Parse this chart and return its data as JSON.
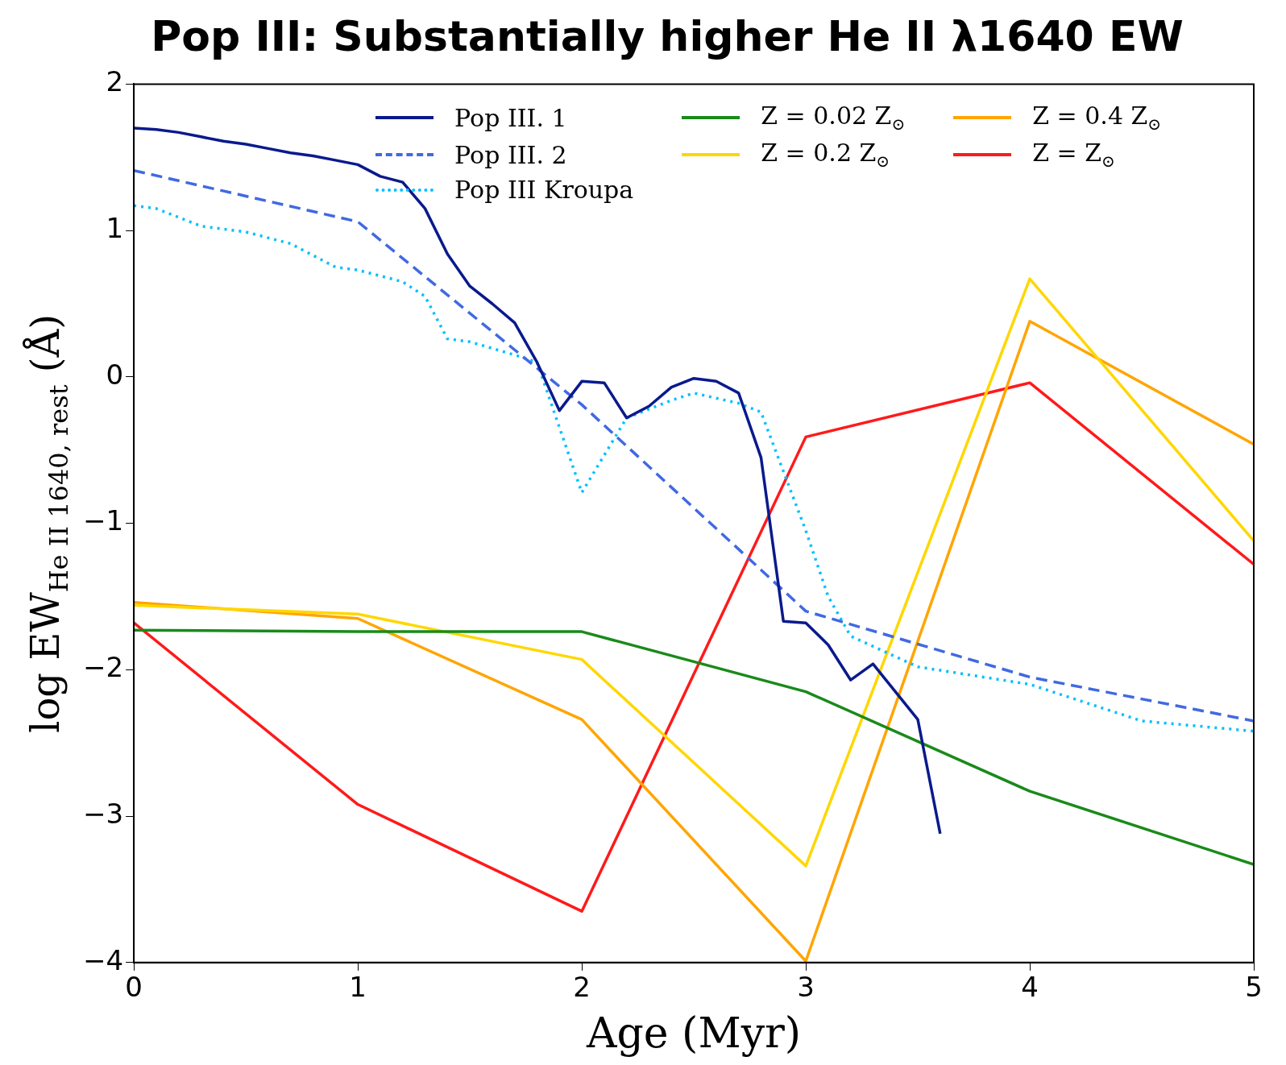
{
  "chart_data": {
    "type": "line",
    "title": "Pop III: Substantially higher He II λ1640 EW",
    "xlabel": "Age (Myr)",
    "ylabel": "log EW$_{He II 1640, rest}$ (Å)",
    "xlim": [
      0,
      5
    ],
    "xticks": [
      0,
      1,
      2,
      3,
      4,
      5
    ],
    "ylim": [
      -4,
      2
    ],
    "yticks": [
      -4,
      -3,
      -2,
      -1,
      0,
      1,
      2
    ],
    "grid": false,
    "legend": "top",
    "marker": "none",
    "series": [
      {
        "name": "Pop III. 1",
        "color": "#0a1a8c",
        "line_style": "solid",
        "x": [
          0,
          0.1,
          0.2,
          0.3,
          0.4,
          0.5,
          0.6,
          0.7,
          0.8,
          0.9,
          1.0,
          1.1,
          1.2,
          1.3,
          1.4,
          1.5,
          1.6,
          1.7,
          1.8,
          1.9,
          2.0,
          2.1,
          2.2,
          2.3,
          2.4,
          2.5,
          2.6,
          2.7,
          2.8,
          2.9,
          3.0,
          3.1,
          3.2,
          3.3,
          3.4,
          3.5,
          3.6
        ],
        "values": [
          1.7,
          1.69,
          1.67,
          1.64,
          1.61,
          1.59,
          1.56,
          1.53,
          1.51,
          1.48,
          1.45,
          1.37,
          1.33,
          1.15,
          0.84,
          0.62,
          0.5,
          0.37,
          0.1,
          -0.23,
          -0.03,
          -0.04,
          -0.28,
          -0.2,
          -0.07,
          -0.01,
          -0.03,
          -0.11,
          -0.55,
          -1.67,
          -1.68,
          -1.83,
          -2.07,
          -1.96,
          -2.15,
          -2.34,
          -3.12
        ]
      },
      {
        "name": "Pop III. 2",
        "color": "#4169e1",
        "line_style": "dashed",
        "x": [
          0,
          1,
          2,
          3,
          4,
          5
        ],
        "values": [
          1.41,
          1.06,
          -0.19,
          -1.6,
          -2.05,
          -2.35
        ]
      },
      {
        "name": "Pop III Kroupa",
        "color": "#00bfff",
        "line_style": "dotted",
        "x": [
          0,
          0.1,
          0.3,
          0.5,
          0.7,
          0.9,
          1.0,
          1.2,
          1.3,
          1.4,
          1.5,
          1.7,
          1.8,
          2.0,
          2.2,
          2.4,
          2.5,
          2.7,
          2.8,
          3.0,
          3.1,
          3.2,
          3.5,
          4.0,
          4.5,
          5.0
        ],
        "values": [
          1.17,
          1.15,
          1.03,
          0.99,
          0.91,
          0.75,
          0.73,
          0.65,
          0.55,
          0.26,
          0.24,
          0.15,
          0.1,
          -0.79,
          -0.28,
          -0.16,
          -0.11,
          -0.18,
          -0.24,
          -1.05,
          -1.5,
          -1.77,
          -1.98,
          -2.1,
          -2.35,
          -2.42
        ]
      },
      {
        "name": "Z = 0.02 Z$_{⊙}$",
        "color": "#1a8a1a",
        "line_style": "solid",
        "x": [
          0,
          1,
          2,
          3,
          4,
          5
        ],
        "values": [
          -1.73,
          -1.74,
          -1.74,
          -2.15,
          -2.83,
          -3.33
        ]
      },
      {
        "name": "Z = 0.2 Z$_{⊙}$",
        "color": "#ffd700",
        "line_style": "solid",
        "x": [
          0,
          1,
          2,
          3,
          4,
          5
        ],
        "values": [
          -1.56,
          -1.62,
          -1.93,
          -3.34,
          0.67,
          -1.12
        ]
      },
      {
        "name": "Z = 0.4 Z$_{⊙}$",
        "color": "#ffa500",
        "line_style": "solid",
        "x": [
          0,
          1,
          2,
          3,
          4,
          5
        ],
        "values": [
          -1.54,
          -1.65,
          -2.34,
          -3.99,
          0.38,
          -0.46
        ]
      },
      {
        "name": "Z = Z$_{⊙}$",
        "color": "#ff1a1a",
        "line_style": "solid",
        "x": [
          0,
          1,
          2,
          3,
          4,
          5
        ],
        "values": [
          -1.68,
          -2.92,
          -3.65,
          -0.41,
          -0.04,
          -1.28
        ]
      }
    ]
  }
}
